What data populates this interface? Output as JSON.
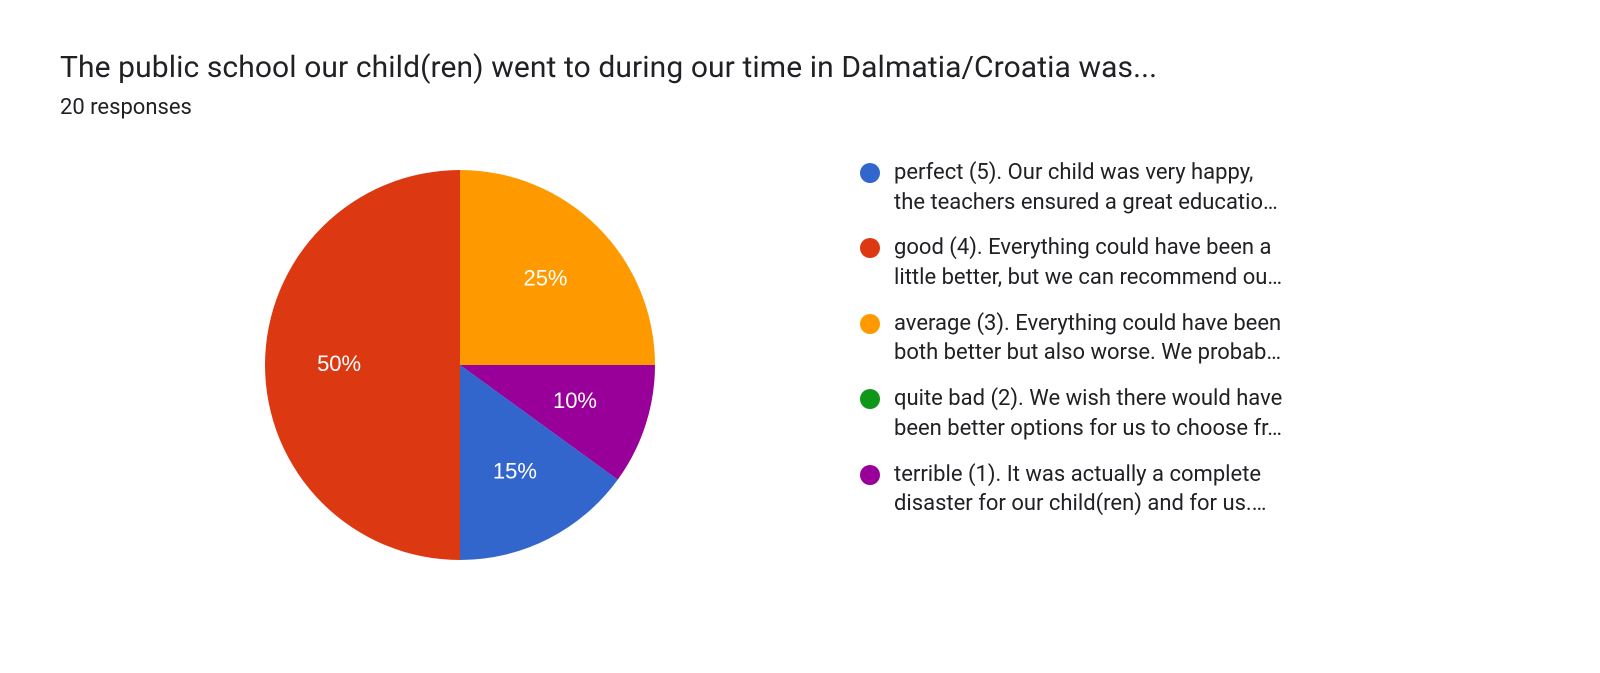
{
  "title": "The public school our child(ren) went to during our time in Dalmatia/Croatia was...",
  "subtitle": "20 responses",
  "chart": {
    "type": "pie",
    "background_color": "#ffffff",
    "radius": 195,
    "label_fontsize": 22,
    "label_color": "#ffffff",
    "slices": [
      {
        "key": "perfect",
        "value": 15,
        "label": "15%",
        "color": "#3366cc"
      },
      {
        "key": "good",
        "value": 50,
        "label": "50%",
        "color": "#dc3912"
      },
      {
        "key": "average",
        "value": 25,
        "label": "25%",
        "color": "#ff9900"
      },
      {
        "key": "quite_bad",
        "value": 0,
        "label": "",
        "color": "#109618"
      },
      {
        "key": "terrible",
        "value": 10,
        "label": "10%",
        "color": "#990099"
      }
    ],
    "start_angle_deg": 0
  },
  "legend": {
    "fontsize": 22,
    "text_color": "#202124",
    "items": [
      {
        "color": "#3366cc",
        "line1": "perfect (5). Our child was very happy,",
        "line2": "the teachers ensured a great educatio…"
      },
      {
        "color": "#dc3912",
        "line1": "good (4). Everything could have been a",
        "line2": "little better, but we can recommend ou…"
      },
      {
        "color": "#ff9900",
        "line1": "average (3). Everything could have been",
        "line2": "both better but also worse. We probab…"
      },
      {
        "color": "#109618",
        "line1": "quite bad (2). We wish there would have",
        "line2": "been better options for us to choose fr…"
      },
      {
        "color": "#990099",
        "line1": "terrible (1). It was actually a complete",
        "line2": "disaster for our child(ren) and for us.…"
      }
    ]
  }
}
